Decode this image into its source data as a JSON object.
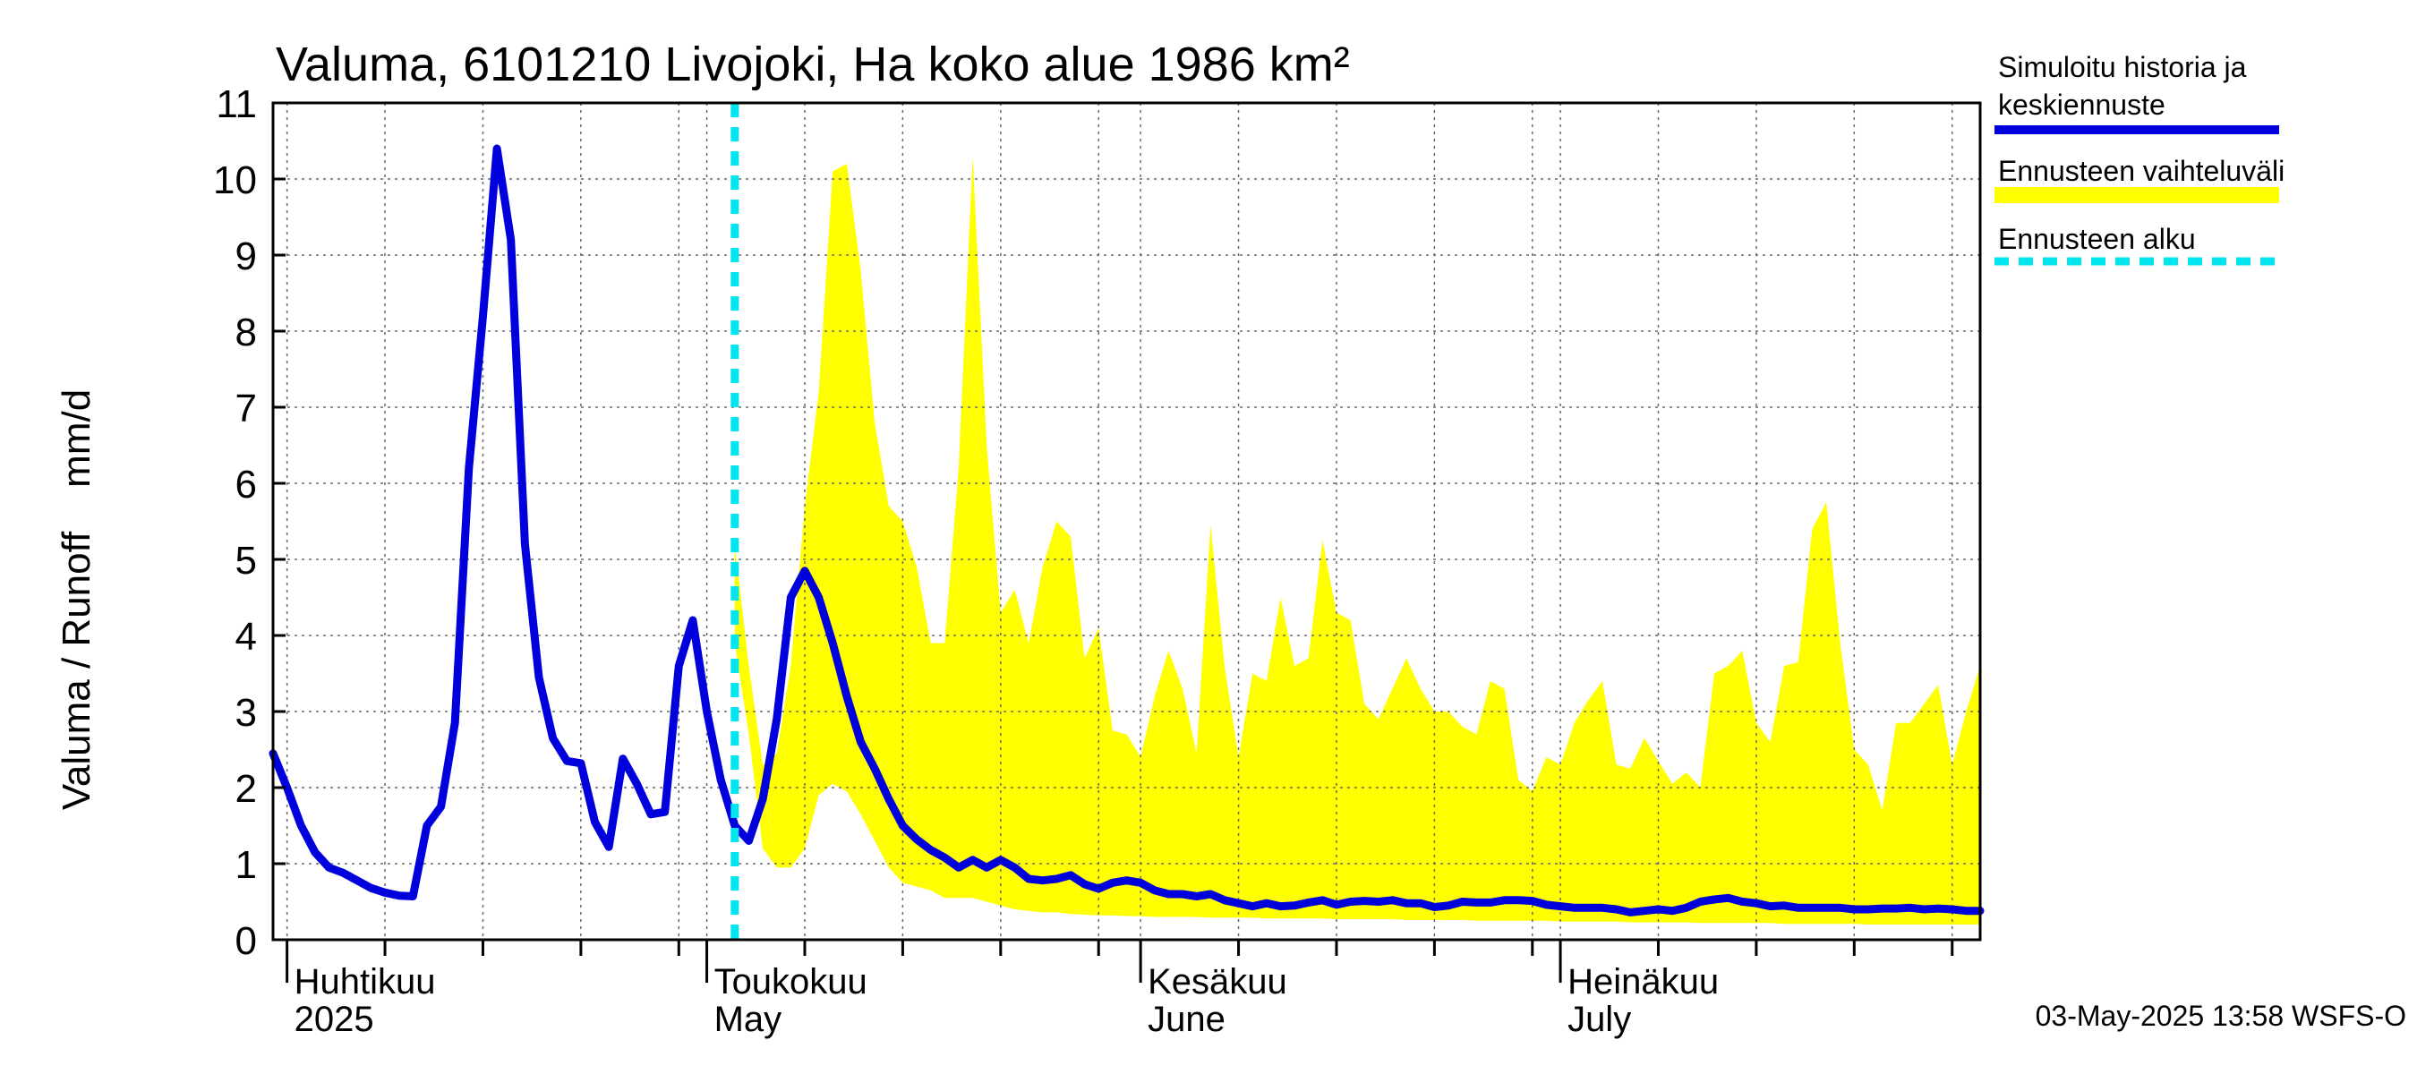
{
  "chart_data": {
    "type": "line",
    "title": "Valuma, 6101210 Livojoki, Ha koko alue 1986 km²",
    "ylabel": "Valuma / Runoff    mm/d",
    "ylim": [
      0,
      11
    ],
    "yticks": [
      0,
      1,
      2,
      3,
      4,
      5,
      6,
      7,
      8,
      9,
      10,
      11
    ],
    "xlim": [
      "2025-03-31",
      "2025-07-31"
    ],
    "grid": true,
    "legend_position": "top-right outside",
    "month_labels": [
      {
        "date": "2025-04-01",
        "line1": "Huhtikuu",
        "line2": "2025"
      },
      {
        "date": "2025-05-01",
        "line1": "Toukokuu",
        "line2": "May"
      },
      {
        "date": "2025-06-01",
        "line1": "Kesäkuu",
        "line2": "June"
      },
      {
        "date": "2025-07-01",
        "line1": "Heinäkuu",
        "line2": "July"
      }
    ],
    "forecast_start": "2025-05-03",
    "series": [
      {
        "name": "Simuloitu historia ja keskiennuste",
        "legend_lines": [
          "Simuloitu historia ja",
          "keskiennuste"
        ],
        "color": "#0000dd",
        "x": [
          "2025-03-31",
          "2025-04-01",
          "2025-04-02",
          "2025-04-03",
          "2025-04-04",
          "2025-04-05",
          "2025-04-06",
          "2025-04-07",
          "2025-04-08",
          "2025-04-09",
          "2025-04-10",
          "2025-04-11",
          "2025-04-12",
          "2025-04-13",
          "2025-04-14",
          "2025-04-15",
          "2025-04-16",
          "2025-04-17",
          "2025-04-18",
          "2025-04-19",
          "2025-04-20",
          "2025-04-21",
          "2025-04-22",
          "2025-04-23",
          "2025-04-24",
          "2025-04-25",
          "2025-04-26",
          "2025-04-27",
          "2025-04-28",
          "2025-04-29",
          "2025-04-30",
          "2025-05-01",
          "2025-05-02",
          "2025-05-03",
          "2025-05-04",
          "2025-05-05",
          "2025-05-06",
          "2025-05-07",
          "2025-05-08",
          "2025-05-09",
          "2025-05-10",
          "2025-05-11",
          "2025-05-12",
          "2025-05-13",
          "2025-05-14",
          "2025-05-15",
          "2025-05-16",
          "2025-05-17",
          "2025-05-18",
          "2025-05-19",
          "2025-05-20",
          "2025-05-21",
          "2025-05-22",
          "2025-05-23",
          "2025-05-24",
          "2025-05-25",
          "2025-05-26",
          "2025-05-27",
          "2025-05-28",
          "2025-05-29",
          "2025-05-30",
          "2025-05-31",
          "2025-06-01",
          "2025-06-02",
          "2025-06-03",
          "2025-06-04",
          "2025-06-05",
          "2025-06-06",
          "2025-06-07",
          "2025-06-08",
          "2025-06-09",
          "2025-06-10",
          "2025-06-11",
          "2025-06-12",
          "2025-06-13",
          "2025-06-14",
          "2025-06-15",
          "2025-06-16",
          "2025-06-17",
          "2025-06-18",
          "2025-06-19",
          "2025-06-20",
          "2025-06-21",
          "2025-06-22",
          "2025-06-23",
          "2025-06-24",
          "2025-06-25",
          "2025-06-26",
          "2025-06-27",
          "2025-06-28",
          "2025-06-29",
          "2025-06-30",
          "2025-07-01",
          "2025-07-02",
          "2025-07-03",
          "2025-07-04",
          "2025-07-05",
          "2025-07-06",
          "2025-07-07",
          "2025-07-08",
          "2025-07-09",
          "2025-07-10",
          "2025-07-11",
          "2025-07-12",
          "2025-07-13",
          "2025-07-14",
          "2025-07-15",
          "2025-07-16",
          "2025-07-17",
          "2025-07-18",
          "2025-07-19",
          "2025-07-20",
          "2025-07-21",
          "2025-07-22",
          "2025-07-23",
          "2025-07-24",
          "2025-07-25",
          "2025-07-26",
          "2025-07-27",
          "2025-07-28",
          "2025-07-29",
          "2025-07-30",
          "2025-07-31"
        ],
        "values": [
          2.45,
          2.0,
          1.5,
          1.15,
          0.95,
          0.88,
          0.78,
          0.68,
          0.62,
          0.58,
          0.57,
          1.5,
          1.75,
          2.85,
          6.2,
          8.2,
          10.4,
          9.2,
          5.2,
          3.45,
          2.65,
          2.35,
          2.32,
          1.55,
          1.22,
          2.38,
          2.05,
          1.65,
          1.68,
          3.6,
          4.2,
          3.0,
          2.1,
          1.5,
          1.3,
          1.85,
          2.9,
          4.5,
          4.85,
          4.5,
          3.9,
          3.2,
          2.6,
          2.25,
          1.85,
          1.5,
          1.32,
          1.18,
          1.08,
          0.95,
          1.05,
          0.95,
          1.05,
          0.95,
          0.8,
          0.78,
          0.8,
          0.85,
          0.73,
          0.67,
          0.75,
          0.78,
          0.75,
          0.65,
          0.6,
          0.6,
          0.57,
          0.6,
          0.52,
          0.48,
          0.44,
          0.48,
          0.44,
          0.45,
          0.49,
          0.52,
          0.46,
          0.5,
          0.51,
          0.5,
          0.52,
          0.48,
          0.48,
          0.43,
          0.45,
          0.5,
          0.49,
          0.49,
          0.52,
          0.52,
          0.51,
          0.46,
          0.44,
          0.42,
          0.42,
          0.42,
          0.4,
          0.36,
          0.38,
          0.4,
          0.38,
          0.42,
          0.5,
          0.53,
          0.55,
          0.5,
          0.48,
          0.44,
          0.45,
          0.42,
          0.42,
          0.42,
          0.42,
          0.4,
          0.4,
          0.41,
          0.41,
          0.42,
          0.4,
          0.41,
          0.4,
          0.38,
          0.38
        ]
      },
      {
        "name": "Ennusteen vaihteluväli",
        "color": "#ffff00",
        "x": [
          "2025-05-03",
          "2025-05-04",
          "2025-05-05",
          "2025-05-06",
          "2025-05-07",
          "2025-05-08",
          "2025-05-09",
          "2025-05-10",
          "2025-05-11",
          "2025-05-12",
          "2025-05-13",
          "2025-05-14",
          "2025-05-15",
          "2025-05-16",
          "2025-05-17",
          "2025-05-18",
          "2025-05-19",
          "2025-05-20",
          "2025-05-21",
          "2025-05-22",
          "2025-05-23",
          "2025-05-24",
          "2025-05-25",
          "2025-05-26",
          "2025-05-27",
          "2025-05-28",
          "2025-05-29",
          "2025-05-30",
          "2025-05-31",
          "2025-06-01",
          "2025-06-02",
          "2025-06-03",
          "2025-06-04",
          "2025-06-05",
          "2025-06-06",
          "2025-06-07",
          "2025-06-08",
          "2025-06-09",
          "2025-06-10",
          "2025-06-11",
          "2025-06-12",
          "2025-06-13",
          "2025-06-14",
          "2025-06-15",
          "2025-06-16",
          "2025-06-17",
          "2025-06-18",
          "2025-06-19",
          "2025-06-20",
          "2025-06-21",
          "2025-06-22",
          "2025-06-23",
          "2025-06-24",
          "2025-06-25",
          "2025-06-26",
          "2025-06-27",
          "2025-06-28",
          "2025-06-29",
          "2025-06-30",
          "2025-07-01",
          "2025-07-02",
          "2025-07-03",
          "2025-07-04",
          "2025-07-05",
          "2025-07-06",
          "2025-07-07",
          "2025-07-08",
          "2025-07-09",
          "2025-07-10",
          "2025-07-11",
          "2025-07-12",
          "2025-07-13",
          "2025-07-14",
          "2025-07-15",
          "2025-07-16",
          "2025-07-17",
          "2025-07-18",
          "2025-07-19",
          "2025-07-20",
          "2025-07-21",
          "2025-07-22",
          "2025-07-23",
          "2025-07-24",
          "2025-07-25",
          "2025-07-26",
          "2025-07-27",
          "2025-07-28",
          "2025-07-29",
          "2025-07-30",
          "2025-07-31"
        ],
        "upper": [
          5.2,
          3.6,
          2.3,
          2.45,
          3.6,
          5.7,
          7.2,
          10.1,
          10.2,
          8.8,
          6.8,
          5.7,
          5.5,
          4.9,
          3.9,
          3.9,
          6.2,
          10.3,
          6.5,
          4.3,
          4.6,
          3.9,
          4.9,
          5.5,
          5.3,
          3.7,
          4.1,
          2.75,
          2.7,
          2.4,
          3.2,
          3.8,
          3.3,
          2.45,
          5.45,
          3.6,
          2.4,
          3.5,
          3.4,
          4.5,
          3.6,
          3.7,
          5.25,
          4.3,
          4.2,
          3.1,
          2.9,
          3.3,
          3.7,
          3.3,
          3.0,
          3.0,
          2.8,
          2.7,
          3.4,
          3.3,
          2.1,
          1.95,
          2.4,
          2.3,
          2.85,
          3.15,
          3.4,
          2.3,
          2.25,
          2.65,
          2.35,
          2.05,
          2.2,
          2.0,
          3.5,
          3.6,
          3.8,
          2.85,
          2.6,
          3.6,
          3.65,
          5.4,
          5.75,
          3.9,
          2.5,
          2.3,
          1.7,
          2.85,
          2.85,
          3.1,
          3.35,
          2.3,
          3.0,
          3.6
        ],
        "lower": [
          3.9,
          2.7,
          1.2,
          0.95,
          0.95,
          1.2,
          1.9,
          2.05,
          1.95,
          1.65,
          1.3,
          0.95,
          0.75,
          0.7,
          0.65,
          0.55,
          0.55,
          0.55,
          0.5,
          0.45,
          0.4,
          0.38,
          0.36,
          0.36,
          0.34,
          0.33,
          0.32,
          0.32,
          0.31,
          0.31,
          0.3,
          0.3,
          0.3,
          0.3,
          0.29,
          0.29,
          0.29,
          0.29,
          0.28,
          0.28,
          0.28,
          0.28,
          0.28,
          0.27,
          0.27,
          0.27,
          0.27,
          0.27,
          0.26,
          0.26,
          0.26,
          0.26,
          0.26,
          0.25,
          0.25,
          0.25,
          0.25,
          0.25,
          0.25,
          0.24,
          0.24,
          0.24,
          0.24,
          0.24,
          0.23,
          0.23,
          0.23,
          0.23,
          0.23,
          0.22,
          0.22,
          0.22,
          0.22,
          0.22,
          0.22,
          0.21,
          0.21,
          0.21,
          0.21,
          0.21,
          0.21,
          0.2,
          0.2,
          0.2,
          0.2,
          0.2,
          0.2,
          0.2,
          0.2,
          0.2
        ]
      },
      {
        "name": "Ennusteen alku",
        "color": "#00e5ee"
      }
    ]
  },
  "footer": "03-May-2025 13:58 WSFS-O"
}
